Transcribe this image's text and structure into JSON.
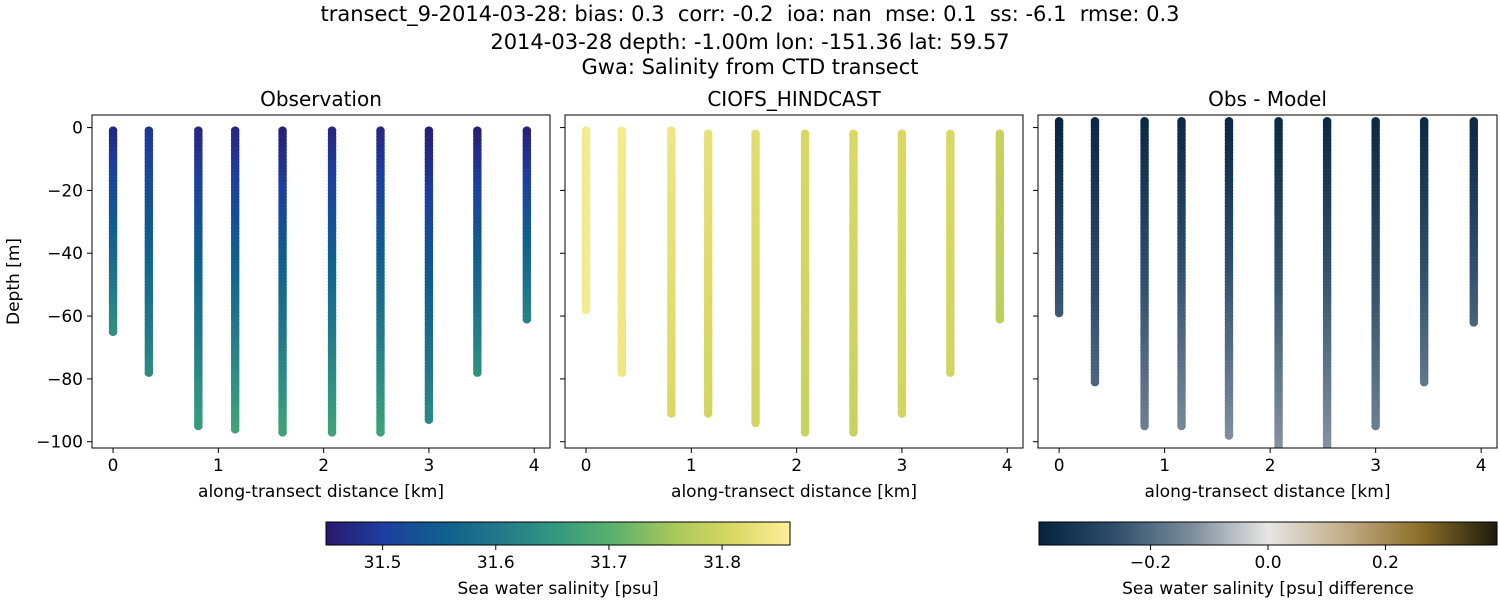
{
  "suptitle": {
    "line1": "transect_9-2014-03-28: bias: 0.3  corr: -0.2  ioa: nan  mse: 0.1  ss: -6.1  rmse: 0.3",
    "line2": "2014-03-28 depth: -1.00m lon: -151.36 lat: 59.57",
    "line3": "Gwa: Salinity from CTD transect"
  },
  "chart_data": [
    {
      "type": "scatter",
      "title": "Observation",
      "xlabel": "along-transect distance [km]",
      "ylabel": "Depth [m]",
      "xlim": [
        -0.2,
        4.15
      ],
      "ylim": [
        -102,
        4
      ],
      "xticks": [
        0,
        1,
        2,
        3,
        4
      ],
      "yticks": [
        0,
        -20,
        -40,
        -60,
        -80,
        -100
      ],
      "ytick_labels": [
        "0",
        "−20",
        "−40",
        "−60",
        "−80",
        "−100"
      ],
      "colormap": "haline",
      "clim": [
        31.45,
        31.86
      ],
      "profiles": [
        {
          "x": 0.0,
          "top": -1,
          "bottom": -65,
          "s_top": 31.47,
          "s_bottom": 31.64
        },
        {
          "x": 0.34,
          "top": -1,
          "bottom": -78,
          "s_top": 31.49,
          "s_bottom": 31.63
        },
        {
          "x": 0.81,
          "top": -1,
          "bottom": -95,
          "s_top": 31.47,
          "s_bottom": 31.66
        },
        {
          "x": 1.16,
          "top": -1,
          "bottom": -96,
          "s_top": 31.47,
          "s_bottom": 31.67
        },
        {
          "x": 1.61,
          "top": -1,
          "bottom": -97,
          "s_top": 31.46,
          "s_bottom": 31.67
        },
        {
          "x": 2.08,
          "top": -1,
          "bottom": -97,
          "s_top": 31.47,
          "s_bottom": 31.67
        },
        {
          "x": 2.54,
          "top": -1,
          "bottom": -97,
          "s_top": 31.47,
          "s_bottom": 31.67
        },
        {
          "x": 3.0,
          "top": -1,
          "bottom": -93,
          "s_top": 31.46,
          "s_bottom": 31.63
        },
        {
          "x": 3.46,
          "top": -1,
          "bottom": -78,
          "s_top": 31.46,
          "s_bottom": 31.64
        },
        {
          "x": 3.93,
          "top": -1,
          "bottom": -61,
          "s_top": 31.46,
          "s_bottom": 31.62
        }
      ]
    },
    {
      "type": "scatter",
      "title": "CIOFS_HINDCAST",
      "xlabel": "along-transect distance [km]",
      "xlim": [
        -0.2,
        4.15
      ],
      "ylim": [
        -102,
        4
      ],
      "xticks": [
        0,
        1,
        2,
        3,
        4
      ],
      "colormap": "haline",
      "clim": [
        31.45,
        31.86
      ],
      "profiles": [
        {
          "x": 0.0,
          "top": -1,
          "bottom": -58,
          "s_top": 31.85,
          "s_bottom": 31.85
        },
        {
          "x": 0.34,
          "top": -1,
          "bottom": -78,
          "s_top": 31.85,
          "s_bottom": 31.84
        },
        {
          "x": 0.81,
          "top": -1,
          "bottom": -91,
          "s_top": 31.84,
          "s_bottom": 31.81
        },
        {
          "x": 1.16,
          "top": -2,
          "bottom": -91,
          "s_top": 31.83,
          "s_bottom": 31.8
        },
        {
          "x": 1.61,
          "top": -2,
          "bottom": -94,
          "s_top": 31.82,
          "s_bottom": 31.8
        },
        {
          "x": 2.08,
          "top": -2,
          "bottom": -97,
          "s_top": 31.81,
          "s_bottom": 31.79
        },
        {
          "x": 2.54,
          "top": -2,
          "bottom": -97,
          "s_top": 31.81,
          "s_bottom": 31.79
        },
        {
          "x": 3.0,
          "top": -2,
          "bottom": -91,
          "s_top": 31.81,
          "s_bottom": 31.8
        },
        {
          "x": 3.46,
          "top": -2,
          "bottom": -78,
          "s_top": 31.81,
          "s_bottom": 31.8
        },
        {
          "x": 3.93,
          "top": -2,
          "bottom": -61,
          "s_top": 31.79,
          "s_bottom": 31.78
        }
      ]
    },
    {
      "type": "scatter",
      "title": "Obs - Model",
      "xlabel": "along-transect distance [km]",
      "xlim": [
        -0.2,
        4.15
      ],
      "ylim": [
        -102,
        4
      ],
      "xticks": [
        0,
        1,
        2,
        3,
        4
      ],
      "colormap": "diff",
      "clim": [
        -0.39,
        0.39
      ],
      "profiles": [
        {
          "x": 0.0,
          "top": 2,
          "bottom": -59,
          "s_top": -0.38,
          "s_bottom": -0.24
        },
        {
          "x": 0.34,
          "top": 2,
          "bottom": -81,
          "s_top": -0.37,
          "s_bottom": -0.21
        },
        {
          "x": 0.81,
          "top": 2,
          "bottom": -95,
          "s_top": -0.37,
          "s_bottom": -0.16
        },
        {
          "x": 1.16,
          "top": 2,
          "bottom": -95,
          "s_top": -0.37,
          "s_bottom": -0.14
        },
        {
          "x": 1.61,
          "top": 2,
          "bottom": -98,
          "s_top": -0.37,
          "s_bottom": -0.13
        },
        {
          "x": 2.08,
          "top": 2,
          "bottom": -102,
          "s_top": -0.37,
          "s_bottom": -0.12
        },
        {
          "x": 2.54,
          "top": 2,
          "bottom": -102,
          "s_top": -0.37,
          "s_bottom": -0.12
        },
        {
          "x": 3.0,
          "top": 2,
          "bottom": -95,
          "s_top": -0.37,
          "s_bottom": -0.16
        },
        {
          "x": 3.46,
          "top": 2,
          "bottom": -81,
          "s_top": -0.37,
          "s_bottom": -0.18
        },
        {
          "x": 3.93,
          "top": 2,
          "bottom": -62,
          "s_top": -0.37,
          "s_bottom": -0.22
        }
      ]
    }
  ],
  "colorbars": [
    {
      "label": "Sea water salinity [psu]",
      "colormap": "haline",
      "vmin": 31.45,
      "vmax": 31.86,
      "ticks": [
        31.5,
        31.6,
        31.7,
        31.8
      ],
      "tick_labels": [
        "31.5",
        "31.6",
        "31.7",
        "31.8"
      ]
    },
    {
      "label": "Sea water salinity [psu] difference",
      "colormap": "diff",
      "vmin": -0.39,
      "vmax": 0.39,
      "ticks": [
        -0.2,
        0.0,
        0.2
      ],
      "tick_labels": [
        "−0.2",
        "0.0",
        "0.2"
      ]
    }
  ],
  "colors": {
    "haline": [
      "#2a186c",
      "#1d3f9e",
      "#0f5e8e",
      "#22788a",
      "#349a7e",
      "#5eb26c",
      "#a8c85a",
      "#d9d864",
      "#fdee99"
    ],
    "diff": [
      "#05223e",
      "#2f4f6c",
      "#7c8c9c",
      "#e7e6e4",
      "#c3ad89",
      "#8c6e28",
      "#1c1b0b"
    ]
  }
}
